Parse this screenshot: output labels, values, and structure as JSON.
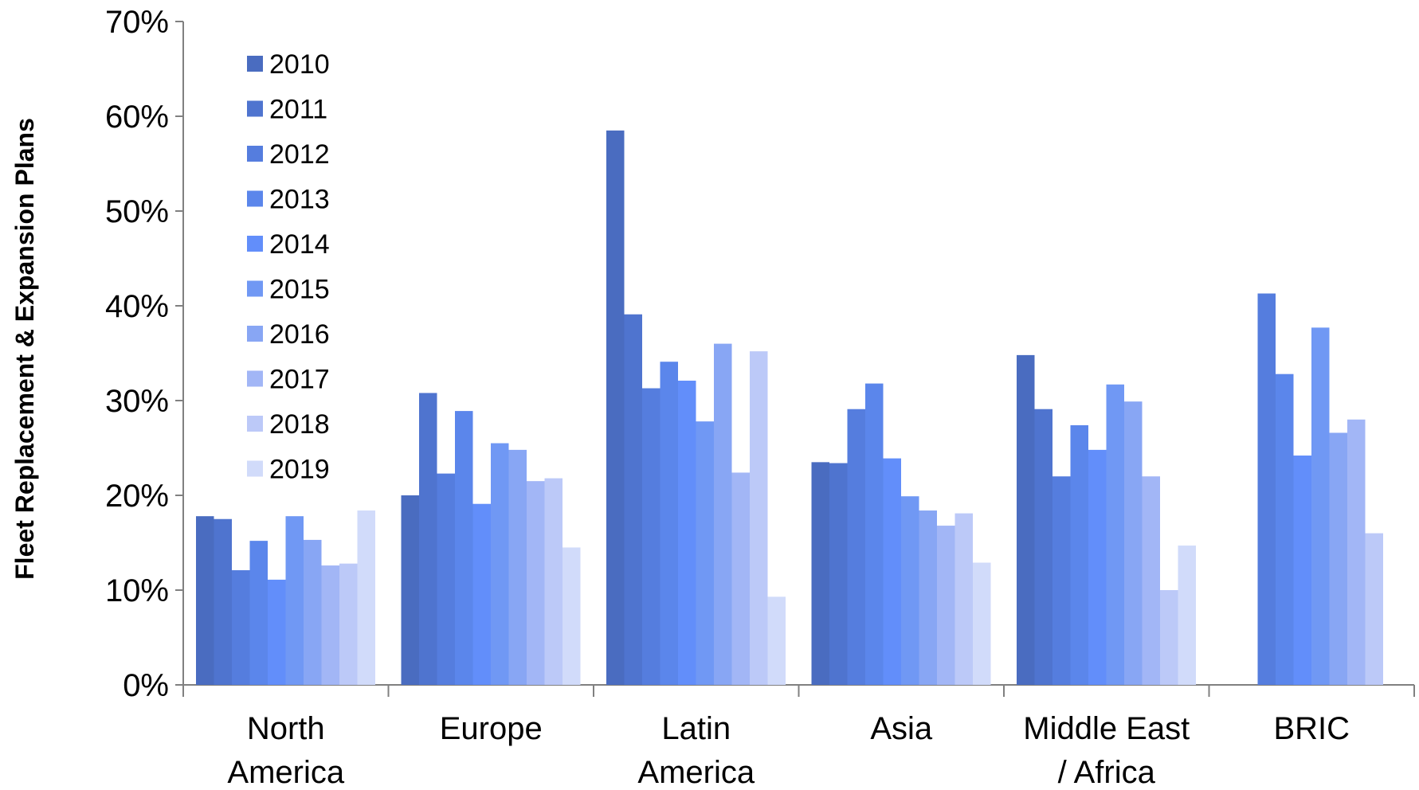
{
  "chart_data": {
    "type": "bar",
    "ylabel": "Fleet Replacement & Expansion Plans",
    "xlabel": "",
    "ylim": [
      0,
      70
    ],
    "y_ticks": [
      "0%",
      "10%",
      "20%",
      "30%",
      "40%",
      "50%",
      "60%",
      "70%"
    ],
    "y_unit": "%",
    "grid": false,
    "legend_position": "top-left",
    "categories": [
      [
        "North",
        "America"
      ],
      [
        "Europe"
      ],
      [
        "Latin",
        "America"
      ],
      [
        "Asia"
      ],
      [
        "Middle East",
        "/ Africa"
      ],
      [
        "BRIC"
      ]
    ],
    "series": [
      {
        "name": "2010",
        "color": "#4a6cc0",
        "values": [
          17.8,
          20.0,
          58.5,
          23.5,
          34.8,
          null
        ]
      },
      {
        "name": "2011",
        "color": "#4f74cf",
        "values": [
          17.5,
          30.8,
          39.1,
          23.4,
          29.1,
          null
        ]
      },
      {
        "name": "2012",
        "color": "#557dde",
        "values": [
          12.1,
          22.3,
          31.3,
          29.1,
          22.0,
          41.3
        ]
      },
      {
        "name": "2013",
        "color": "#5b86eb",
        "values": [
          15.2,
          28.9,
          34.1,
          31.8,
          27.4,
          32.8
        ]
      },
      {
        "name": "2014",
        "color": "#628efa",
        "values": [
          11.1,
          19.1,
          32.1,
          23.9,
          24.8,
          24.2
        ]
      },
      {
        "name": "2015",
        "color": "#7098f4",
        "values": [
          17.8,
          25.5,
          27.8,
          19.9,
          31.7,
          37.7
        ]
      },
      {
        "name": "2016",
        "color": "#88a6f4",
        "values": [
          15.3,
          24.8,
          36.0,
          18.4,
          29.9,
          26.6
        ]
      },
      {
        "name": "2017",
        "color": "#a2b6f6",
        "values": [
          12.6,
          21.5,
          22.4,
          16.8,
          22.0,
          28.0
        ]
      },
      {
        "name": "2018",
        "color": "#bcc9f8",
        "values": [
          12.8,
          21.8,
          35.2,
          18.1,
          10.0,
          16.0
        ]
      },
      {
        "name": "2019",
        "color": "#d1dbfa",
        "values": [
          18.4,
          14.5,
          9.3,
          12.9,
          14.7,
          null
        ]
      }
    ]
  }
}
